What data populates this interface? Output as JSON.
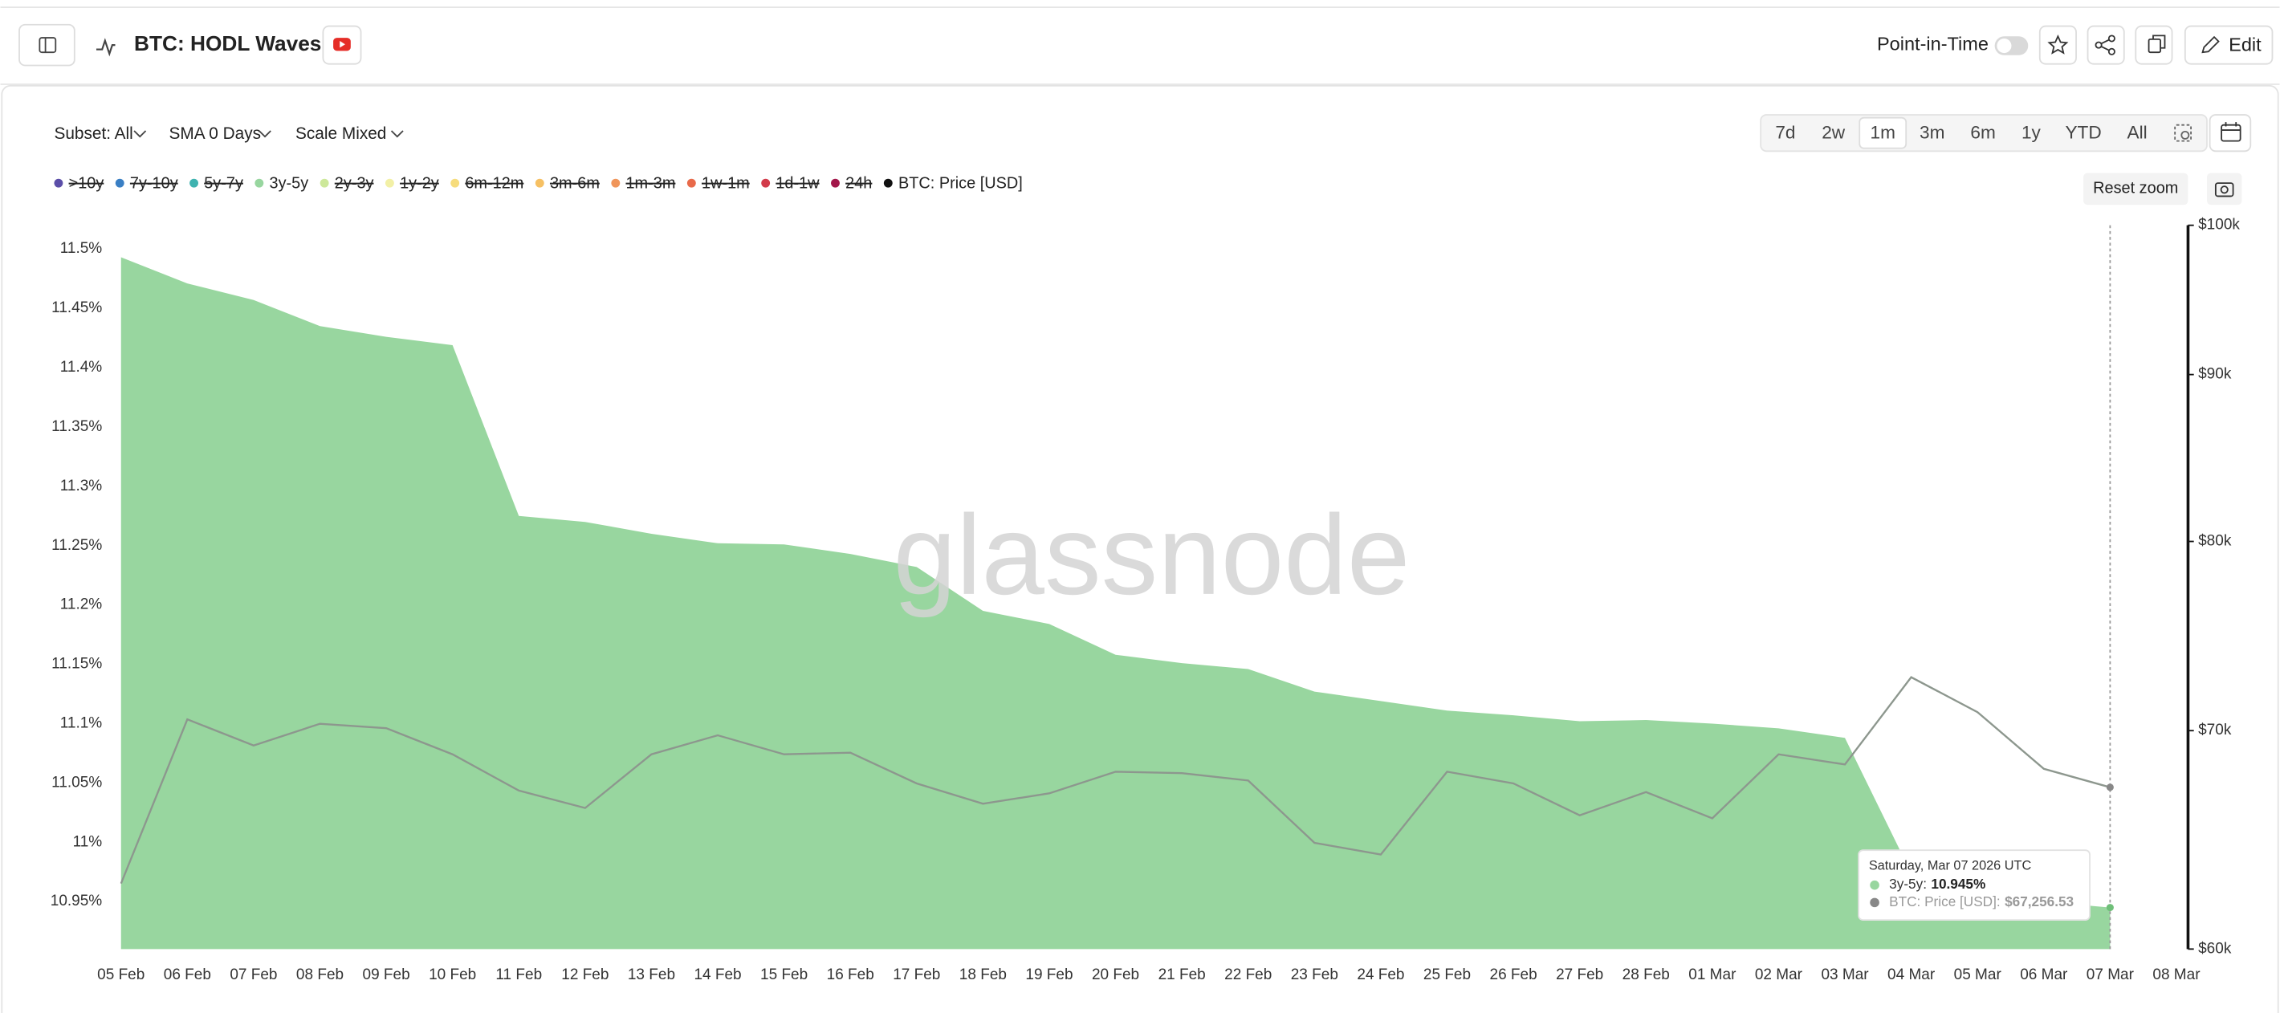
{
  "header": {
    "title": "BTC: HODL Waves",
    "point_in_time": "Point-in-Time",
    "edit": "Edit"
  },
  "toolbar": {
    "subset": "Subset: All",
    "sma": "SMA 0 Days",
    "scale": "Scale Mixed",
    "ranges": [
      "7d",
      "2w",
      "1m",
      "3m",
      "6m",
      "1y",
      "YTD",
      "All"
    ],
    "active_range": 2,
    "reset_zoom": "Reset zoom"
  },
  "chart_data": {
    "type": "area-line",
    "watermark": "glassnode",
    "categories": [
      "05 Feb",
      "06 Feb",
      "07 Feb",
      "08 Feb",
      "09 Feb",
      "10 Feb",
      "11 Feb",
      "12 Feb",
      "13 Feb",
      "14 Feb",
      "15 Feb",
      "16 Feb",
      "17 Feb",
      "18 Feb",
      "19 Feb",
      "20 Feb",
      "21 Feb",
      "22 Feb",
      "23 Feb",
      "24 Feb",
      "25 Feb",
      "26 Feb",
      "27 Feb",
      "28 Feb",
      "01 Mar",
      "02 Mar",
      "03 Mar",
      "04 Mar",
      "05 Mar",
      "06 Mar",
      "07 Mar",
      "08 Mar"
    ],
    "ylim": [
      10.91,
      11.52
    ],
    "yticks": [
      {
        "value": 10.95,
        "label": "10.95%"
      },
      {
        "value": 11,
        "label": "11%"
      },
      {
        "value": 11.05,
        "label": "11.05%"
      },
      {
        "value": 11.1,
        "label": "11.1%"
      },
      {
        "value": 11.15,
        "label": "11.15%"
      },
      {
        "value": 11.2,
        "label": "11.2%"
      },
      {
        "value": 11.25,
        "label": "11.25%"
      },
      {
        "value": 11.3,
        "label": "11.3%"
      },
      {
        "value": 11.35,
        "label": "11.35%"
      },
      {
        "value": 11.4,
        "label": "11.4%"
      },
      {
        "value": 11.45,
        "label": "11.45%"
      },
      {
        "value": 11.5,
        "label": "11.5%"
      }
    ],
    "y2lim": [
      60000,
      100000
    ],
    "y2log": true,
    "y2ticks": [
      {
        "value": 60000,
        "label": "$60k"
      },
      {
        "value": 70000,
        "label": "$70k"
      },
      {
        "value": 80000,
        "label": "$80k"
      },
      {
        "value": 90000,
        "label": "$90k"
      },
      {
        "value": 100000,
        "label": "$100k"
      }
    ],
    "series": [
      {
        "name": ">10y",
        "color": "#5b4ea8",
        "visible": false
      },
      {
        "name": "7y-10y",
        "color": "#3a7fc4",
        "visible": false
      },
      {
        "name": "5y-7y",
        "color": "#3fb3b0",
        "visible": false
      },
      {
        "name": "3y-5y",
        "color": "#98d69f",
        "visible": true,
        "kind": "area",
        "values": [
          11.493,
          11.471,
          11.457,
          11.435,
          11.426,
          11.419,
          11.275,
          11.27,
          11.26,
          11.252,
          11.251,
          11.243,
          11.232,
          11.195,
          11.184,
          11.158,
          11.151,
          11.146,
          11.127,
          11.119,
          11.111,
          11.107,
          11.102,
          11.103,
          11.1,
          11.096,
          11.088,
          10.974,
          10.96,
          10.95,
          10.945,
          null
        ]
      },
      {
        "name": "2y-3y",
        "color": "#cde89a",
        "visible": false
      },
      {
        "name": "1y-2y",
        "color": "#f2f0a6",
        "visible": false
      },
      {
        "name": "6m-12m",
        "color": "#f6dc7c",
        "visible": false
      },
      {
        "name": "3m-6m",
        "color": "#f6c063",
        "visible": false
      },
      {
        "name": "1m-3m",
        "color": "#f0955a",
        "visible": false
      },
      {
        "name": "1w-1m",
        "color": "#e86a4a",
        "visible": false
      },
      {
        "name": "1d-1w",
        "color": "#d23b4a",
        "visible": false
      },
      {
        "name": "24h",
        "color": "#a3174a",
        "visible": false
      },
      {
        "name": "BTC: Price [USD]",
        "color": "#111111",
        "line_color": "#8d978e",
        "visible": true,
        "kind": "line",
        "axis": "y2",
        "values": [
          62840,
          70560,
          69270,
          70340,
          70120,
          68840,
          67100,
          66280,
          68840,
          69770,
          68840,
          68920,
          67440,
          66480,
          66970,
          68000,
          67930,
          67580,
          64670,
          64140,
          68000,
          67440,
          65940,
          67030,
          65800,
          68840,
          68350,
          72690,
          70920,
          68140,
          67256.53,
          null
        ]
      }
    ],
    "tooltip": {
      "title": "Saturday, Mar 07 2026 UTC",
      "rows": [
        {
          "label": "3y-5y:",
          "value": "10.945%"
        },
        {
          "label": "BTC: Price [USD]:",
          "value": "$67,256.53"
        }
      ]
    }
  }
}
